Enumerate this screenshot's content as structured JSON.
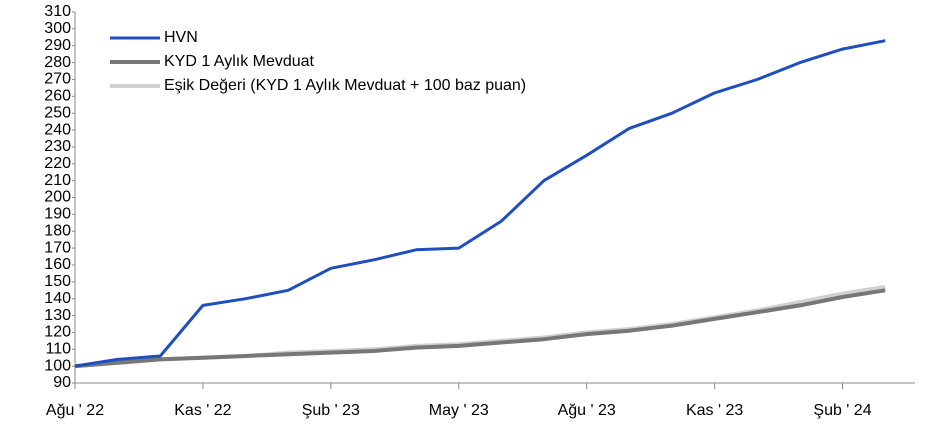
{
  "chart_data": {
    "type": "line",
    "x": [
      "2022-08",
      "2022-09",
      "2022-10",
      "2022-11",
      "2022-12",
      "2023-01",
      "2023-02",
      "2023-03",
      "2023-04",
      "2023-05",
      "2023-06",
      "2023-07",
      "2023-08",
      "2023-09",
      "2023-10",
      "2023-11",
      "2023-12",
      "2024-01",
      "2024-02",
      "2024-03"
    ],
    "series": [
      {
        "name": "HVN",
        "color": "#1f4fbf",
        "values": [
          100,
          104,
          106,
          136,
          140,
          145,
          158,
          163,
          169,
          170,
          186,
          210,
          225,
          241,
          250,
          262,
          270,
          280,
          288,
          293
        ]
      },
      {
        "name": "KYD 1 Aylık Mevduat",
        "color": "#777777",
        "values": [
          100,
          102,
          104,
          105,
          106,
          107,
          108,
          109,
          111,
          112,
          114,
          116,
          119,
          121,
          124,
          128,
          132,
          136,
          141,
          145
        ]
      },
      {
        "name": "Eşik Değeri (KYD 1 Aylık Mevduat + 100 baz puan)",
        "color": "#d0d0d0",
        "values": [
          100,
          102,
          104,
          105,
          106,
          108,
          109,
          110,
          112,
          113,
          115,
          117,
          120,
          122,
          125,
          129,
          133,
          138,
          143,
          147
        ]
      }
    ],
    "xlim": [
      "2022-08",
      "2024-03"
    ],
    "xticks": [
      {
        "value": "2022-08",
        "label": "Ağu ' 22"
      },
      {
        "value": "2022-11",
        "label": "Kas ' 22"
      },
      {
        "value": "2023-02",
        "label": "Şub ' 23"
      },
      {
        "value": "2023-05",
        "label": "May ' 23"
      },
      {
        "value": "2023-08",
        "label": "Ağu ' 23"
      },
      {
        "value": "2023-11",
        "label": "Kas ' 23"
      },
      {
        "value": "2024-02",
        "label": "Şub ' 24"
      }
    ],
    "ylim": [
      90,
      310
    ],
    "yticks": [
      90,
      100,
      110,
      120,
      130,
      140,
      150,
      160,
      170,
      180,
      190,
      200,
      210,
      220,
      230,
      240,
      250,
      260,
      270,
      280,
      290,
      300,
      310
    ],
    "legend": "top-left"
  }
}
